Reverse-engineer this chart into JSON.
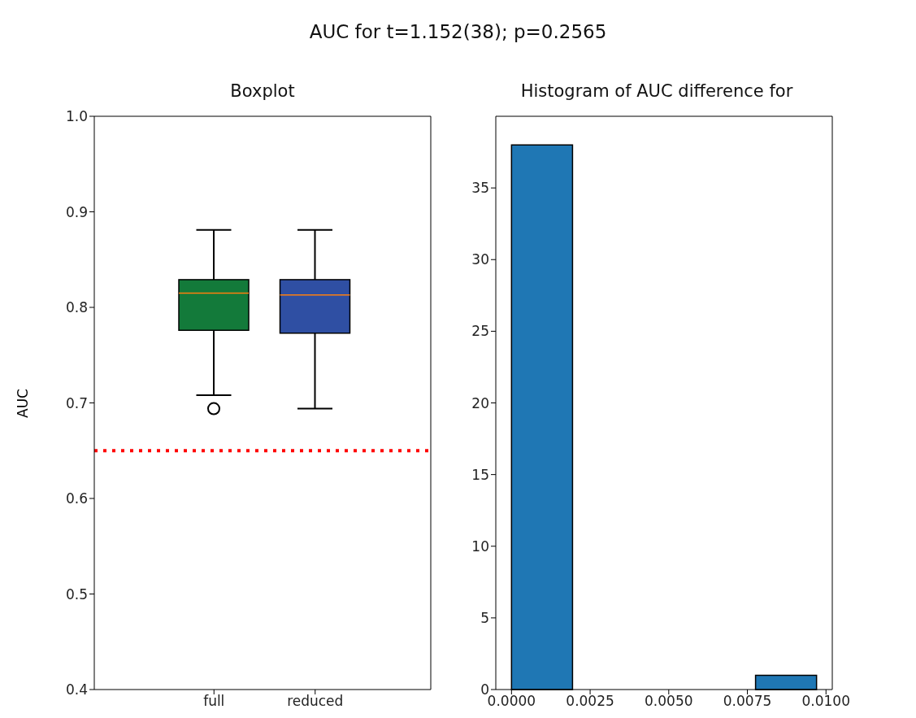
{
  "chart_data": [
    {
      "type": "box",
      "title": "AUC for t=1.152(38); p=0.2565",
      "subtitle": "Boxplot",
      "ylabel": "AUC",
      "categories": [
        "full",
        "reduced"
      ],
      "colors": [
        "#137a3a",
        "#2f4fa3"
      ],
      "boxes": [
        {
          "low": 0.708,
          "q1": 0.776,
          "median": 0.815,
          "q3": 0.829,
          "high": 0.881,
          "outliers": [
            0.694
          ]
        },
        {
          "low": 0.694,
          "q1": 0.773,
          "median": 0.813,
          "q3": 0.829,
          "high": 0.881
        }
      ],
      "ylim": [
        0.4,
        1.0
      ],
      "yticks": [
        0.4,
        0.5,
        0.6,
        0.7,
        0.8,
        0.9,
        {
          "value": 1,
          "label": "1.0"
        }
      ],
      "ref_lines": [
        {
          "axis": "y",
          "value": 0.65,
          "color": "#ff0000",
          "line_style": "dotted"
        }
      ]
    },
    {
      "type": "histogram",
      "title": "Histogram of AUC difference for",
      "bins": [
        0,
        0.00194,
        0.00388,
        0.00582,
        0.00776,
        0.0097
      ],
      "values": [
        38,
        0,
        0,
        0,
        1
      ],
      "color": "#1f77b4",
      "xlim": [
        -0.0005,
        0.0102
      ],
      "xticks": [
        {
          "value": 0,
          "label": "0.0000"
        },
        {
          "value": 0.0025,
          "label": "0.0025"
        },
        {
          "value": 0.005,
          "label": "0.0050"
        },
        {
          "value": 0.0075,
          "label": "0.0075"
        },
        {
          "value": 0.01,
          "label": "0.0100"
        }
      ],
      "ylim": [
        0,
        40
      ],
      "yticks": [
        0,
        5,
        10,
        15,
        20,
        25,
        30,
        35
      ]
    }
  ]
}
